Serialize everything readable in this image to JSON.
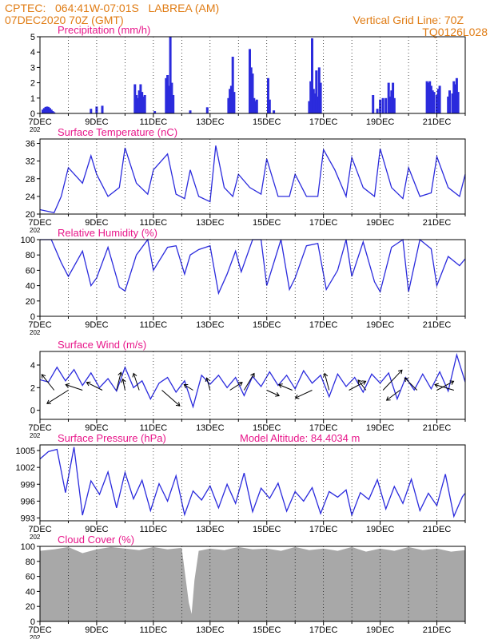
{
  "header": {
    "station_line": "CPTEC:   064:41W-07:01S   LABREA (AM)",
    "run_time": "07DEC2020 70Z (GMT)",
    "grid_line": "Vertical Grid Line: 70Z",
    "code": "TQ0126L028"
  },
  "colors": {
    "header": "#e07c14",
    "title": "#e8178a",
    "line": "#2b2bdd",
    "bar": "#2b2bdd",
    "cloud": "#a8a8a8"
  },
  "x_tick_labels": [
    "7DEC",
    "9DEC",
    "11DEC",
    "13DEC",
    "15DEC",
    "17DEC",
    "19DEC",
    "21DEC"
  ],
  "partial_year_label": "202",
  "chart_data": [
    {
      "type": "bar",
      "title": "Precipitation (mm/h)",
      "y_ticks": [
        "0",
        "1",
        "2",
        "3",
        "4",
        "5"
      ],
      "ylim": [
        0,
        5
      ],
      "x_days": [
        0,
        15
      ],
      "bars": [
        [
          0.1,
          0.25
        ],
        [
          0.15,
          0.35
        ],
        [
          0.2,
          0.42
        ],
        [
          0.25,
          0.45
        ],
        [
          0.3,
          0.42
        ],
        [
          0.35,
          0.35
        ],
        [
          0.4,
          0.25
        ],
        [
          0.45,
          0.15
        ],
        [
          0.5,
          0.08
        ],
        [
          1.8,
          0.3
        ],
        [
          2.0,
          0.45
        ],
        [
          2.2,
          0.5
        ],
        [
          3.35,
          1.9
        ],
        [
          3.4,
          1.2
        ],
        [
          3.45,
          1.0
        ],
        [
          3.5,
          1.5
        ],
        [
          3.55,
          1.9
        ],
        [
          3.6,
          1.4
        ],
        [
          3.65,
          1.1
        ],
        [
          3.7,
          1.2
        ],
        [
          4.05,
          0.15
        ],
        [
          4.45,
          2.3
        ],
        [
          4.5,
          2.5
        ],
        [
          4.55,
          1.8
        ],
        [
          4.6,
          5.0
        ],
        [
          4.65,
          2.0
        ],
        [
          4.7,
          1.2
        ],
        [
          5.3,
          0.2
        ],
        [
          5.9,
          0.4
        ],
        [
          6.65,
          1.0
        ],
        [
          6.7,
          1.6
        ],
        [
          6.75,
          1.8
        ],
        [
          6.8,
          3.7
        ],
        [
          6.85,
          1.4
        ],
        [
          7.4,
          4.2
        ],
        [
          7.45,
          3.0
        ],
        [
          7.5,
          2.6
        ],
        [
          7.55,
          1.0
        ],
        [
          7.6,
          0.8
        ],
        [
          7.65,
          0.9
        ],
        [
          8.05,
          2.3
        ],
        [
          8.1,
          0.9
        ],
        [
          8.25,
          0.2
        ],
        [
          9.5,
          0.8
        ],
        [
          9.55,
          2.1
        ],
        [
          9.6,
          4.9
        ],
        [
          9.65,
          1.6
        ],
        [
          9.7,
          1.3
        ],
        [
          9.75,
          2.8
        ],
        [
          9.8,
          1.1
        ],
        [
          9.85,
          3.0
        ],
        [
          9.9,
          2.0
        ],
        [
          11.75,
          1.2
        ],
        [
          11.9,
          0.3
        ],
        [
          12.0,
          0.9
        ],
        [
          12.1,
          1.0
        ],
        [
          12.2,
          1.0
        ],
        [
          12.3,
          2.0
        ],
        [
          12.35,
          1.1
        ],
        [
          12.4,
          1.5
        ],
        [
          12.45,
          2.0
        ],
        [
          12.5,
          1.0
        ],
        [
          13.65,
          2.1
        ],
        [
          13.7,
          2.0
        ],
        [
          13.75,
          2.1
        ],
        [
          13.8,
          1.8
        ],
        [
          13.85,
          1.5
        ],
        [
          13.9,
          1.4
        ],
        [
          14.0,
          1.2
        ],
        [
          14.05,
          1.6
        ],
        [
          14.1,
          1.8
        ],
        [
          14.4,
          1.1
        ],
        [
          14.45,
          1.5
        ],
        [
          14.55,
          1.3
        ],
        [
          14.6,
          2.1
        ],
        [
          14.65,
          1.9
        ],
        [
          14.7,
          2.3
        ],
        [
          14.75,
          1.4
        ]
      ]
    },
    {
      "type": "line",
      "title": "Surface Temperature (nC)",
      "y_ticks": [
        "20",
        "24",
        "28",
        "32",
        "36"
      ],
      "ylim": [
        20,
        37
      ],
      "x": [
        0,
        0.5,
        0.75,
        1.0,
        1.5,
        1.8,
        2.0,
        2.4,
        2.8,
        3.0,
        3.4,
        3.8,
        4.0,
        4.5,
        4.8,
        5.1,
        5.3,
        5.6,
        6.0,
        6.2,
        6.5,
        6.8,
        7.0,
        7.4,
        7.8,
        8.0,
        8.4,
        8.8,
        9.0,
        9.4,
        9.8,
        10.0,
        10.4,
        10.8,
        11.0,
        11.4,
        11.8,
        12.0,
        12.4,
        12.8,
        13.0,
        13.4,
        13.8,
        14.0,
        14.4,
        14.8,
        15.0
      ],
      "y": [
        21,
        20.3,
        24,
        30.5,
        27,
        33.2,
        29,
        24,
        26,
        35,
        27,
        24.5,
        30,
        33.6,
        24.5,
        23.5,
        30,
        24,
        22.8,
        35.5,
        26,
        24,
        29,
        26,
        24.5,
        32.5,
        24,
        24,
        29,
        24,
        24,
        34.6,
        30,
        24,
        32.8,
        26,
        24,
        34.8,
        26,
        23.5,
        30.5,
        24,
        24.8,
        33,
        26,
        24,
        29
      ]
    },
    {
      "type": "line",
      "title": "Relative Humidity (%)",
      "y_ticks": [
        "0",
        "20",
        "40",
        "60",
        "80",
        "100"
      ],
      "ylim": [
        0,
        100
      ],
      "x": [
        0,
        0.4,
        0.75,
        1.0,
        1.5,
        1.8,
        2.0,
        2.4,
        2.8,
        3.0,
        3.4,
        3.8,
        4.0,
        4.5,
        4.8,
        5.1,
        5.3,
        5.6,
        6.0,
        6.3,
        6.6,
        6.9,
        7.1,
        7.5,
        7.8,
        8.0,
        8.5,
        8.8,
        9.0,
        9.4,
        9.8,
        10.1,
        10.5,
        10.8,
        11.0,
        11.4,
        11.8,
        12.0,
        12.4,
        12.8,
        13.0,
        13.4,
        13.8,
        14.0,
        14.4,
        14.8,
        15.0
      ],
      "y": [
        100,
        100,
        70,
        52,
        85,
        40,
        50,
        90,
        38,
        33,
        80,
        100,
        60,
        90,
        92,
        55,
        80,
        87,
        92,
        30,
        55,
        85,
        58,
        100,
        100,
        40,
        100,
        35,
        50,
        92,
        95,
        35,
        60,
        100,
        52,
        97,
        45,
        32,
        90,
        100,
        32,
        100,
        88,
        40,
        78,
        66,
        75
      ]
    },
    {
      "type": "line",
      "title": "Surface Wind (m/s)",
      "y_ticks": [
        "0",
        "2",
        "4"
      ],
      "ylim": [
        -0.8,
        5.2
      ],
      "x": [
        0,
        0.3,
        0.6,
        0.9,
        1.2,
        1.5,
        1.8,
        2.1,
        2.4,
        2.7,
        3.0,
        3.3,
        3.6,
        3.9,
        4.2,
        4.5,
        4.8,
        5.1,
        5.4,
        5.7,
        6.0,
        6.3,
        6.6,
        6.9,
        7.2,
        7.5,
        7.8,
        8.1,
        8.4,
        8.7,
        9.0,
        9.3,
        9.6,
        9.9,
        10.2,
        10.5,
        10.8,
        11.1,
        11.4,
        11.7,
        12.0,
        12.3,
        12.6,
        12.9,
        13.2,
        13.5,
        13.8,
        14.1,
        14.4,
        14.7,
        15.0
      ],
      "y": [
        2.7,
        2.5,
        3.8,
        2.6,
        3.6,
        2.2,
        3.3,
        2.0,
        2.8,
        1.7,
        3.8,
        2.0,
        2.6,
        1.0,
        2.4,
        2.9,
        1.6,
        2.6,
        0.3,
        3.1,
        2.3,
        3.1,
        2.0,
        2.9,
        1.3,
        3.0,
        2.1,
        3.4,
        2.2,
        3.1,
        1.9,
        3.5,
        2.4,
        3.1,
        1.2,
        3.2,
        2.1,
        2.9,
        1.6,
        3.2,
        2.4,
        3.3,
        1.0,
        2.9,
        1.8,
        3.2,
        1.9,
        3.4,
        1.7,
        4.9,
        2.5
      ],
      "arrows": [
        [
          0.5,
          -22,
          -28
        ],
        [
          1.0,
          -38,
          24
        ],
        [
          1.5,
          -30,
          -10
        ],
        [
          2.2,
          -28,
          -14
        ],
        [
          2.7,
          8,
          -32
        ],
        [
          3.0,
          -4,
          -20
        ],
        [
          3.5,
          -10,
          -30
        ],
        [
          4.3,
          32,
          28
        ],
        [
          5.4,
          -16,
          -10
        ],
        [
          6.0,
          -6,
          -22
        ],
        [
          6.7,
          22,
          -14
        ],
        [
          7.2,
          18,
          -30
        ],
        [
          8.0,
          22,
          10
        ],
        [
          8.9,
          -24,
          -10
        ],
        [
          9.6,
          -30,
          14
        ],
        [
          10.2,
          -8,
          -30
        ],
        [
          10.9,
          30,
          -16
        ],
        [
          11.5,
          -14,
          -18
        ],
        [
          12.1,
          34,
          -36
        ],
        [
          12.7,
          -24,
          18
        ],
        [
          13.3,
          -22,
          -22
        ],
        [
          14.0,
          30,
          -16
        ],
        [
          14.6,
          -34,
          -10
        ]
      ]
    },
    {
      "type": "line",
      "title": "Surface Pressure (hPa)",
      "annotation": "Model Altitude: 84.4034 m",
      "y_ticks": [
        "993",
        "996",
        "999",
        "1002",
        "1005"
      ],
      "ylim": [
        992.5,
        1006
      ],
      "x": [
        0,
        0.3,
        0.6,
        0.9,
        1.2,
        1.5,
        1.8,
        2.1,
        2.4,
        2.7,
        3.0,
        3.3,
        3.6,
        3.9,
        4.2,
        4.5,
        4.8,
        5.1,
        5.4,
        5.7,
        6.0,
        6.3,
        6.6,
        6.9,
        7.2,
        7.5,
        7.8,
        8.1,
        8.4,
        8.7,
        9.0,
        9.3,
        9.6,
        9.9,
        10.2,
        10.5,
        10.8,
        11.0,
        11.3,
        11.6,
        11.9,
        12.2,
        12.5,
        12.8,
        13.1,
        13.4,
        13.7,
        14.0,
        14.3,
        14.6,
        14.9,
        15.0
      ],
      "y": [
        1003.5,
        1004.8,
        1005.2,
        997.5,
        1005.6,
        993.5,
        999.6,
        997.2,
        1001.2,
        994.8,
        1001.1,
        996.4,
        999.7,
        994.3,
        999.1,
        996.0,
        1000.5,
        993.6,
        997.8,
        996.2,
        998.7,
        994.8,
        999.0,
        995.6,
        1001.0,
        994.1,
        998.3,
        996.5,
        999.2,
        994.2,
        997.7,
        996.0,
        998.4,
        993.8,
        997.7,
        996.7,
        998.0,
        993.5,
        997.5,
        996.3,
        999.8,
        994.6,
        998.6,
        995.6,
        999.9,
        994.3,
        997.4,
        995.2,
        1000.8,
        993.3,
        996.8,
        997.4
      ]
    },
    {
      "type": "bar",
      "title": "Cloud Cover (%)",
      "y_ticks": [
        "0",
        "20",
        "40",
        "60",
        "80",
        "100"
      ],
      "ylim": [
        0,
        100
      ],
      "x_days": [
        0,
        15
      ],
      "x": [
        0,
        0.5,
        1.0,
        1.5,
        2.0,
        2.5,
        3.0,
        3.5,
        4.0,
        4.5,
        5.0,
        5.25,
        5.35,
        5.45,
        5.6,
        6.0,
        6.5,
        7.0,
        7.5,
        8.0,
        8.5,
        9.0,
        9.5,
        10.0,
        10.5,
        11.0,
        11.5,
        12.0,
        12.5,
        13.0,
        13.5,
        14.0,
        14.5,
        15.0
      ],
      "y": [
        94,
        96,
        99,
        91,
        96,
        99,
        97,
        95,
        99,
        96,
        98,
        25,
        10,
        55,
        94,
        97,
        95,
        99,
        96,
        97,
        94,
        99,
        95,
        97,
        94,
        99,
        93,
        97,
        94,
        99,
        95,
        97,
        93,
        95
      ]
    }
  ]
}
